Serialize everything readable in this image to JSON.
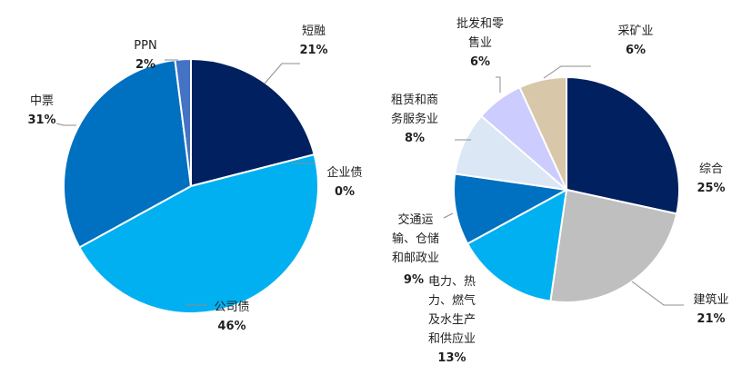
{
  "chart_data": [
    {
      "type": "pie",
      "slices": [
        {
          "name": "短融",
          "value": 21,
          "color": "#002060"
        },
        {
          "name": "企业债",
          "value": 0,
          "color": "#1f4e79"
        },
        {
          "name": "公司债",
          "value": 46,
          "color": "#00b0f0"
        },
        {
          "name": "中票",
          "value": 31,
          "color": "#0070c0"
        },
        {
          "name": "PPN",
          "value": 2,
          "color": "#4472c4"
        }
      ],
      "labels": [
        {
          "name": "短融",
          "pct": "21%"
        },
        {
          "name": "企业债",
          "pct": "0%"
        },
        {
          "name": "公司债",
          "pct": "46%"
        },
        {
          "name": "中票",
          "pct": "31%"
        },
        {
          "name": "PPN",
          "pct": "2%"
        }
      ]
    },
    {
      "type": "pie",
      "slices": [
        {
          "name": "综合",
          "value": 25,
          "color": "#002060"
        },
        {
          "name": "建筑业",
          "value": 21,
          "color": "#bfbfbf"
        },
        {
          "name": "电力、热力、燃气及水生产和供应业",
          "value": 13,
          "color": "#00b0f0"
        },
        {
          "name": "交通运输、仓储和邮政业",
          "value": 9,
          "color": "#0070c0"
        },
        {
          "name": "租赁和商务服务业",
          "value": 8,
          "color": "#dbe7f5"
        },
        {
          "name": "批发和零售业",
          "value": 6,
          "color": "#ccccff"
        },
        {
          "name": "采矿业",
          "value": 6,
          "color": "#d9c7a9"
        }
      ],
      "labels": [
        {
          "lines": [
            "综合"
          ],
          "pct": "25%"
        },
        {
          "lines": [
            "建筑业"
          ],
          "pct": "21%"
        },
        {
          "lines": [
            "电力、热",
            "力、燃气",
            "及水生产",
            "和供应业"
          ],
          "pct": "13%"
        },
        {
          "lines": [
            "交通运",
            "输、仓储",
            "和邮政业"
          ],
          "pct": "9%"
        },
        {
          "lines": [
            "租赁和商",
            "务服务业"
          ],
          "pct": "8%"
        },
        {
          "lines": [
            "批发和零",
            "售业"
          ],
          "pct": "6%"
        },
        {
          "lines": [
            "采矿业"
          ],
          "pct": "6%"
        }
      ]
    }
  ]
}
